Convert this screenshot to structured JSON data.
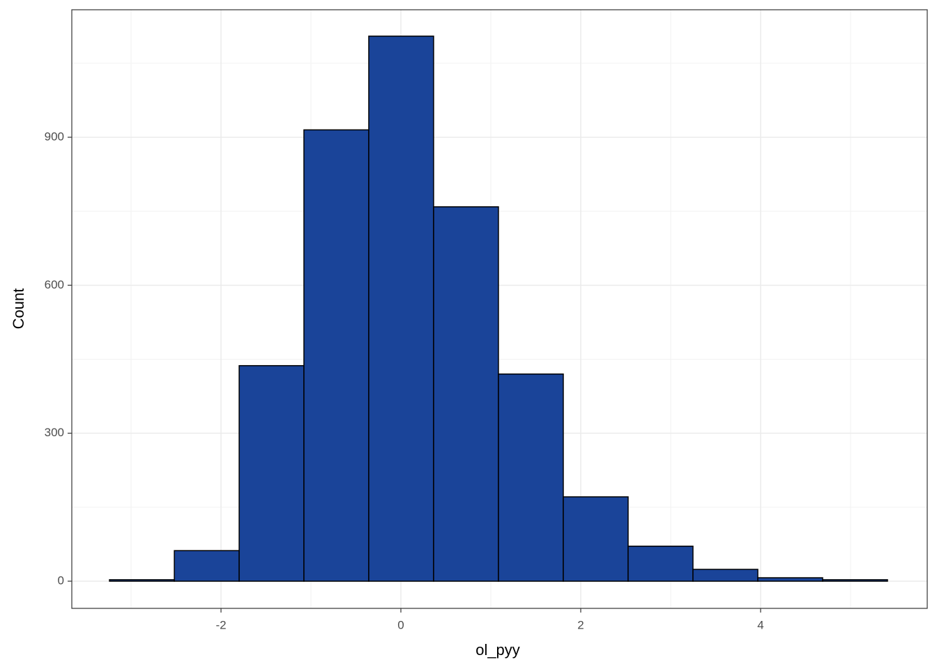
{
  "chart_data": {
    "type": "histogram",
    "x_label": "ol_pyy",
    "y_label": "Count",
    "bins": [
      -3.24,
      -2.519,
      -1.798,
      -1.078,
      -0.357,
      0.364,
      1.085,
      1.806,
      2.527,
      3.248,
      3.969,
      4.69,
      5.411
    ],
    "values": [
      3,
      62,
      437,
      915,
      1105,
      759,
      420,
      171,
      71,
      24,
      7,
      3
    ],
    "color": "#1a4499",
    "edgecolor": "#000000",
    "xlim": [
      -3.659,
      5.853
    ],
    "ylim": [
      -55.1,
      1158.5
    ],
    "xticks": [
      -2,
      0,
      2,
      4
    ],
    "yticks": [
      0,
      300,
      600,
      900
    ],
    "x_minor_grid": [
      -3,
      -1,
      1,
      3,
      5
    ],
    "y_minor_grid": [
      150,
      450,
      750,
      1050
    ],
    "grid": true
  }
}
